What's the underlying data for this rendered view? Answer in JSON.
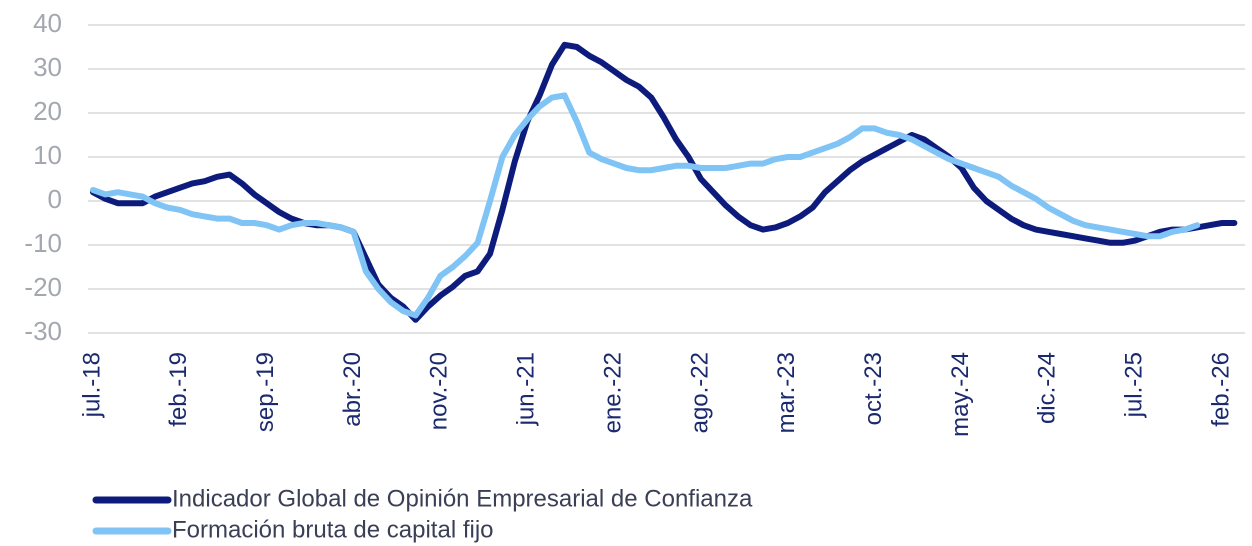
{
  "chart_data": {
    "type": "line",
    "categories": [
      "jul.-18",
      null,
      null,
      null,
      null,
      null,
      null,
      "feb.-19",
      null,
      null,
      null,
      null,
      null,
      null,
      "sep.-19",
      null,
      null,
      null,
      null,
      null,
      null,
      "abr.-20",
      null,
      null,
      null,
      null,
      null,
      null,
      "nov.-20",
      null,
      null,
      null,
      null,
      null,
      null,
      "jun.-21",
      null,
      null,
      null,
      null,
      null,
      null,
      "ene.-22",
      null,
      null,
      null,
      null,
      null,
      null,
      "ago.-22",
      null,
      null,
      null,
      null,
      null,
      null,
      "mar.-23",
      null,
      null,
      null,
      null,
      null,
      null,
      "oct.-23",
      null,
      null,
      null,
      null,
      null,
      null,
      "may.-24",
      null,
      null,
      null,
      null,
      null,
      null,
      "dic.-24",
      null,
      null,
      null,
      null,
      null,
      null,
      "jul.-25",
      null,
      null,
      null,
      null,
      null,
      null,
      "feb.-26",
      null
    ],
    "series": [
      {
        "name": "Indicador Global de Opinión Empresarial de Confianza",
        "color": "#0d1c7c",
        "values": [
          2,
          0.5,
          -0.5,
          -0.5,
          -0.5,
          1,
          2,
          3,
          4,
          4.5,
          5.5,
          6,
          4,
          1.5,
          -0.5,
          -2.5,
          -4,
          -5,
          -5.5,
          -5.5,
          -6,
          -7,
          -13,
          -19,
          -22,
          -24,
          -27,
          -24,
          -21.5,
          -19.5,
          -17,
          -16,
          -12,
          -2,
          9,
          18,
          24,
          31,
          35.5,
          35,
          33,
          31.5,
          29.5,
          27.5,
          26,
          23.5,
          19,
          14,
          10,
          5,
          2,
          -1,
          -3.5,
          -5.5,
          -6.5,
          -6,
          -5,
          -3.5,
          -1.5,
          2,
          4.5,
          7,
          9,
          10.5,
          12,
          13.5,
          15,
          14,
          12,
          10,
          7.5,
          3,
          0,
          -2,
          -4,
          -5.5,
          -6.5,
          -7,
          -7.5,
          -8,
          -8.5,
          -9,
          -9.5,
          -9.5,
          -9,
          -8,
          -7,
          -6.5,
          -6.5,
          -6,
          -5.5,
          -5,
          -5
        ]
      },
      {
        "name": "Formación bruta de capital fijo",
        "color": "#7fc4f5",
        "values": [
          2.5,
          1.5,
          2,
          1.5,
          1,
          -0.5,
          -1.5,
          -2,
          -3,
          -3.5,
          -4,
          -4,
          -5,
          -5,
          -5.5,
          -6.5,
          -5.5,
          -5,
          -5,
          -5.5,
          -6,
          -7,
          -16,
          -20,
          -23,
          -25,
          -26,
          -22,
          -17,
          -15,
          -12.5,
          -9.5,
          0,
          10,
          15,
          18.5,
          21.5,
          23.5,
          24,
          18,
          11,
          9.5,
          8.5,
          7.5,
          7,
          7,
          7.5,
          8,
          8,
          7.5,
          7.5,
          7.5,
          8,
          8.5,
          8.5,
          9.5,
          10,
          10,
          11,
          12,
          13,
          14.5,
          16.5,
          16.5,
          15.5,
          15,
          14,
          12.5,
          11,
          9.5,
          8.5,
          7.5,
          6.5,
          5.5,
          3.5,
          2,
          0.5,
          -1.5,
          -3,
          -4.5,
          -5.5,
          -6,
          -6.5,
          -7,
          -7.5,
          -8,
          -8,
          -7,
          -6.5,
          -5.5,
          null,
          null,
          null
        ]
      }
    ],
    "ylim": [
      -30,
      40
    ],
    "yticks": [
      -30,
      -20,
      -10,
      0,
      10,
      20,
      30,
      40
    ],
    "grid": true
  }
}
